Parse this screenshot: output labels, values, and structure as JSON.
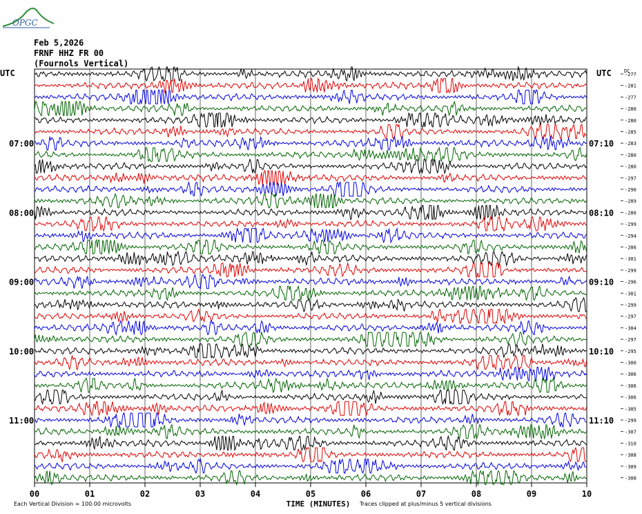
{
  "header": {
    "logo_text": "OPGC",
    "date": "Feb 5,2026",
    "station": "FRNF HHZ FR 00",
    "location": "(Fournols Vertical)"
  },
  "footer": {
    "scale_note": "Each Vertical Division =  100.00 microvolts",
    "clip_note": "Traces clipped at plus/minus 5 vertical divisions"
  },
  "colors": {
    "traces": [
      "#000000",
      "#e00000",
      "#0000e0",
      "#006400"
    ],
    "grid": "#000000",
    "background": "#ffffff",
    "logo": "#2b5aa8"
  },
  "chart_data": {
    "type": "line",
    "title": "",
    "xlabel": "TIME (MINUTES)",
    "ylabel_left": "UTC",
    "ylabel_right": "UTC",
    "dc_label": "DC",
    "xlim": [
      0,
      10
    ],
    "x_ticks": [
      "00",
      "01",
      "02",
      "03",
      "04",
      "05",
      "06",
      "07",
      "08",
      "09",
      "10"
    ],
    "traces_per_hour": 6,
    "left_time_labels": [
      {
        "row": 6,
        "label": "07:00"
      },
      {
        "row": 12,
        "label": "08:00"
      },
      {
        "row": 18,
        "label": "09:00"
      },
      {
        "row": 24,
        "label": "10:00"
      },
      {
        "row": 30,
        "label": "11:00"
      }
    ],
    "right_time_labels": [
      {
        "row": 6,
        "label": "07:10"
      },
      {
        "row": 12,
        "label": "08:10"
      },
      {
        "row": 18,
        "label": "09:10"
      },
      {
        "row": 24,
        "label": "10:10"
      },
      {
        "row": 30,
        "label": "11:10"
      }
    ],
    "dc_offsets": [
      -277,
      -281,
      -277,
      -280,
      -280,
      -285,
      -283,
      -280,
      -280,
      -297,
      -290,
      -289,
      -286,
      -299,
      -294,
      -286,
      -301,
      -299,
      -296,
      -301,
      -299,
      -297,
      -304,
      -297,
      -295,
      -300,
      -306,
      -306,
      -306,
      -305,
      -299,
      -307,
      -310,
      -308,
      -309,
      -308
    ],
    "trace_count": 36,
    "grid": "vertical minute lines",
    "clip_divisions": 5,
    "division_microvolts": 100.0
  }
}
